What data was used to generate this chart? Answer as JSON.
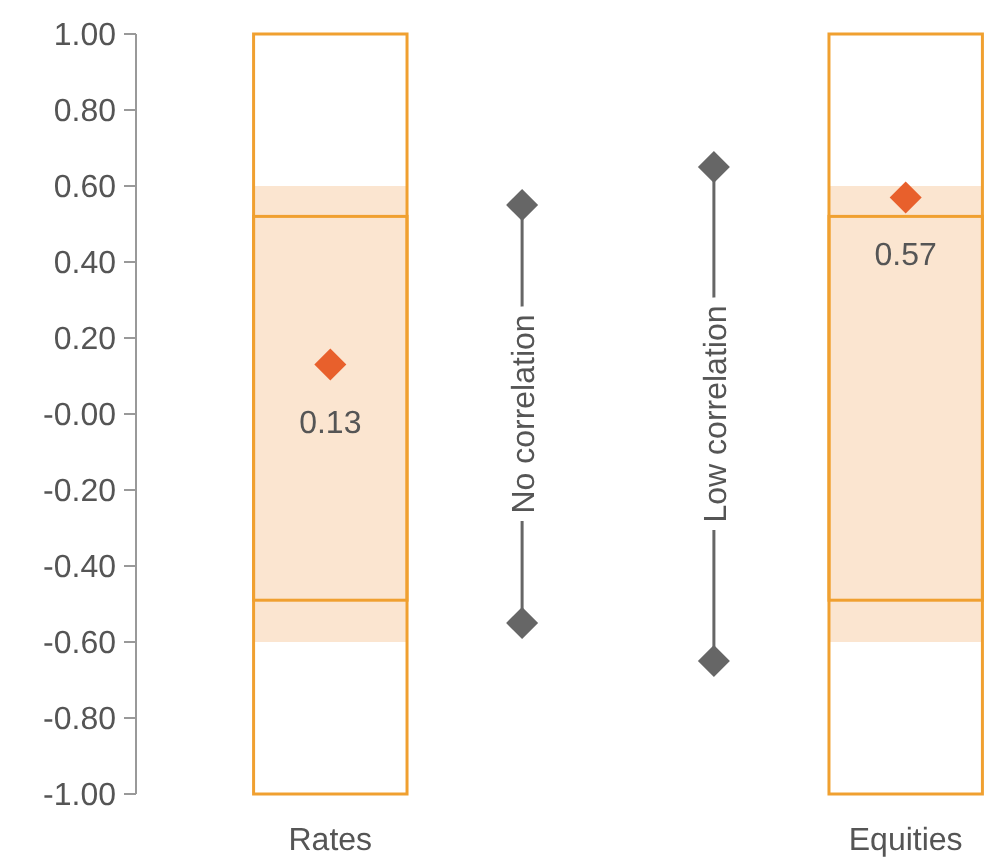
{
  "chart_data": {
    "type": "bar",
    "categories": [
      "Rates",
      null,
      null,
      "Equities"
    ],
    "ylim": [
      -1,
      1
    ],
    "yticks": [
      {
        "value": 1,
        "label": "1.00"
      },
      {
        "value": 0.8,
        "label": "0.80"
      },
      {
        "value": 0.6,
        "label": "0.60"
      },
      {
        "value": 0.4,
        "label": "0.40"
      },
      {
        "value": 0.2,
        "label": "0.20"
      },
      {
        "value": 0,
        "label": "-0.00"
      },
      {
        "value": -0.2,
        "label": "-0.20"
      },
      {
        "value": -0.4,
        "label": "-0.40"
      },
      {
        "value": -0.6,
        "label": "-0.60"
      },
      {
        "value": -0.8,
        "label": "-0.80"
      },
      {
        "value": -1,
        "label": "-1.00"
      }
    ],
    "series": [
      {
        "color": "#fbe5d0",
        "base": [
          -0.6,
          null,
          null,
          -0.6
        ],
        "values": [
          1.2,
          null,
          null,
          1.2
        ]
      },
      {
        "color": "#f0a030",
        "line_style": "solid",
        "base": [
          -1,
          null,
          null,
          -1
        ],
        "values": [
          2,
          null,
          null,
          2
        ]
      },
      {
        "color": "#f0a030",
        "line_style": "solid",
        "base": [
          -0.49,
          null,
          null,
          -0.49
        ],
        "values": [
          1.01,
          null,
          null,
          1.01
        ]
      },
      {
        "type": "scatter",
        "color": "#666666",
        "marker": "diamond",
        "values": [
          null,
          0.55,
          0.65,
          null
        ]
      },
      {
        "type": "scatter",
        "color": "#666666",
        "marker": "diamond",
        "values": [
          null,
          -0.55,
          -0.65,
          null
        ]
      },
      {
        "type": "scatter",
        "color": "#e8602c",
        "marker": "diamond",
        "values": [
          0.13,
          null,
          null,
          0.57
        ],
        "value_labels": [
          "0.13",
          null,
          null,
          "0.57"
        ]
      }
    ],
    "annotations": [
      "No correlation",
      "Low correlation"
    ]
  }
}
